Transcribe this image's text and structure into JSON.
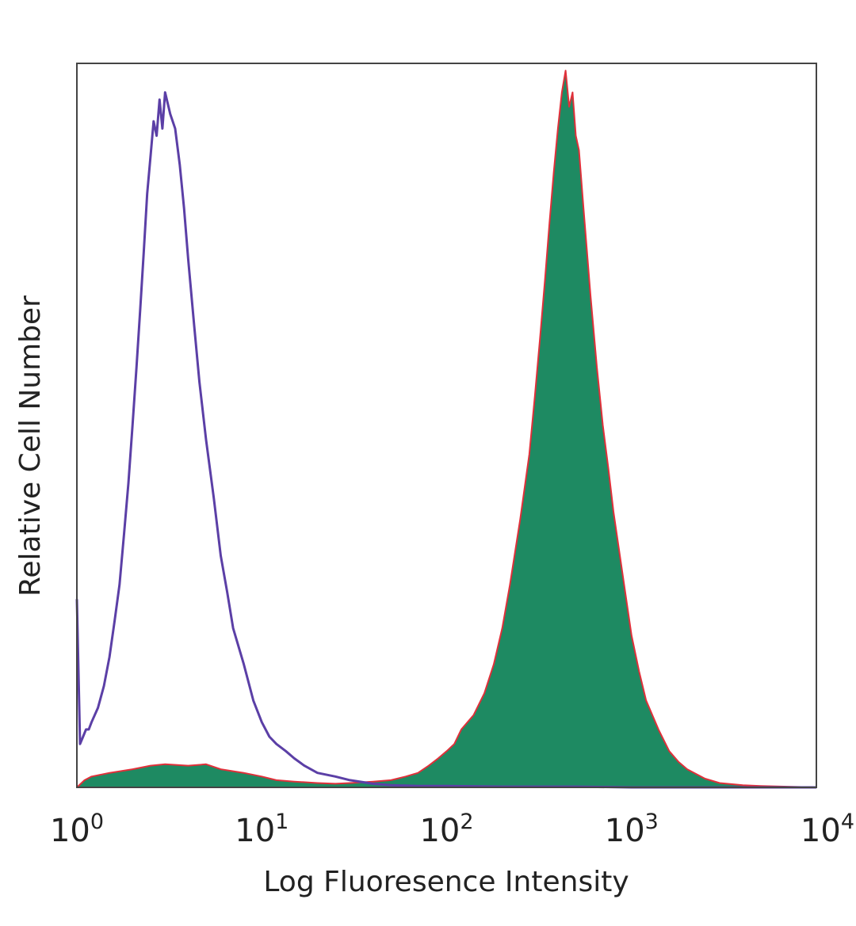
{
  "chart_data": {
    "type": "area",
    "title": "",
    "xlabel": "Log Fluoresence Intensity",
    "ylabel": "Relative Cell Number",
    "x_scale": "log",
    "xlim": [
      1,
      10000
    ],
    "ylim": [
      0,
      100
    ],
    "grid": false,
    "legend": "none",
    "x_ticks": [
      {
        "value": 1,
        "base": "10",
        "exp": "0"
      },
      {
        "value": 10,
        "base": "10",
        "exp": "1"
      },
      {
        "value": 100,
        "base": "10",
        "exp": "2"
      },
      {
        "value": 1000,
        "base": "10",
        "exp": "3"
      },
      {
        "value": 10000,
        "base": "10",
        "exp": "4"
      }
    ],
    "series": [
      {
        "style": "line",
        "color": "#5b3fa6",
        "x": [
          1.0,
          1.04,
          1.08,
          1.12,
          1.16,
          1.2,
          1.3,
          1.4,
          1.5,
          1.6,
          1.7,
          1.8,
          1.9,
          2.0,
          2.1,
          2.2,
          2.3,
          2.4,
          2.5,
          2.6,
          2.7,
          2.8,
          2.9,
          3.0,
          3.2,
          3.4,
          3.6,
          3.8,
          4.0,
          4.3,
          4.6,
          5.0,
          5.5,
          6.0,
          6.5,
          7.0,
          8.0,
          9.0,
          10.0,
          11.0,
          12.0,
          13.5,
          15.0,
          17.0,
          20.0,
          25.0,
          30.0,
          40.0,
          50.0,
          70.0,
          100.0,
          200.0,
          500.0,
          1000.0,
          2000.0,
          5000.0,
          10000.0
        ],
        "y": [
          26,
          6,
          7,
          8,
          8,
          9,
          11,
          14,
          18,
          23,
          28,
          35,
          42,
          50,
          58,
          66,
          74,
          82,
          87,
          92,
          90,
          95,
          91,
          96,
          93,
          91,
          86,
          80,
          73,
          64,
          56,
          48,
          40,
          32,
          27,
          22,
          17,
          12,
          9,
          7,
          6,
          5,
          4,
          3,
          2,
          1.5,
          1,
          0.5,
          0.3,
          0.2,
          0.2,
          0.1,
          0.1,
          0,
          0,
          0,
          0
        ]
      },
      {
        "style": "filled",
        "color": "#1e8a62",
        "edge_color": "#e0303a",
        "x": [
          1.0,
          1.1,
          1.2,
          1.5,
          2.0,
          2.5,
          3.0,
          4.0,
          5.0,
          6.0,
          8.0,
          10.0,
          12.0,
          15.0,
          20.0,
          25.0,
          30.0,
          40.0,
          50.0,
          60.0,
          70.0,
          80.0,
          90.0,
          100.0,
          110.0,
          120.0,
          140.0,
          160.0,
          180.0,
          200.0,
          220.0,
          250.0,
          280.0,
          300.0,
          320.0,
          340.0,
          360.0,
          380.0,
          400.0,
          420.0,
          440.0,
          460.0,
          480.0,
          500.0,
          520.0,
          550.0,
          600.0,
          650.0,
          700.0,
          750.0,
          800.0,
          900.0,
          1000.0,
          1100.0,
          1200.0,
          1400.0,
          1600.0,
          1800.0,
          2000.0,
          2500.0,
          3000.0,
          4000.0,
          5000.0,
          7000.0,
          10000.0
        ],
        "y": [
          0,
          1,
          1.5,
          2,
          2.5,
          3,
          3.2,
          3,
          3.2,
          2.5,
          2,
          1.5,
          1,
          0.8,
          0.6,
          0.5,
          0.6,
          0.8,
          1,
          1.5,
          2,
          3,
          4,
          5,
          6,
          8,
          10,
          13,
          17,
          22,
          28,
          37,
          46,
          54,
          62,
          70,
          78,
          85,
          91,
          96,
          99,
          94,
          96,
          90,
          88,
          80,
          68,
          58,
          50,
          44,
          38,
          29,
          21,
          16,
          12,
          8,
          5,
          3.5,
          2.5,
          1.2,
          0.6,
          0.3,
          0.2,
          0.1,
          0
        ]
      }
    ]
  }
}
